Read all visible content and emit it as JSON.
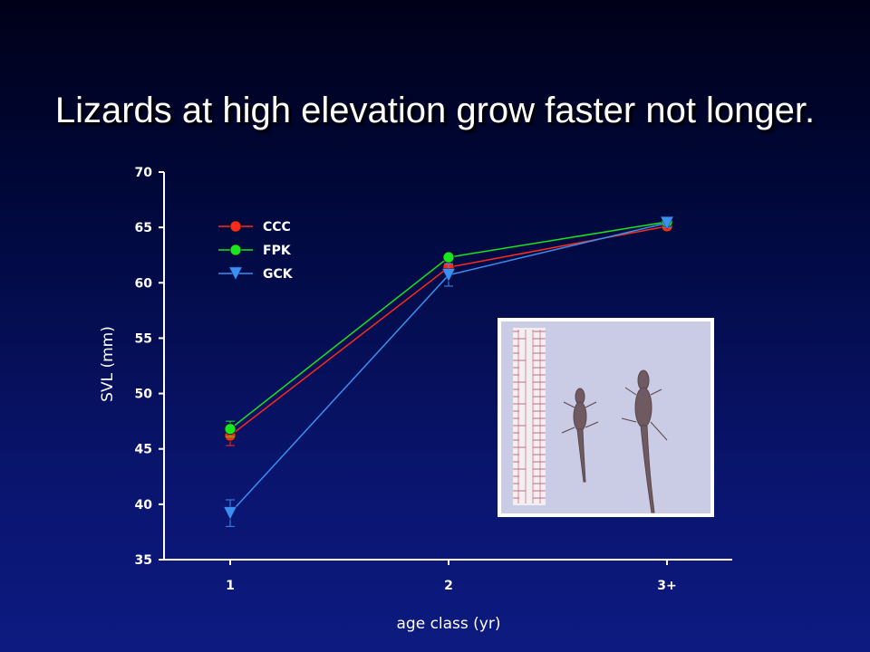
{
  "slide": {
    "title": "Lizards at high elevation grow faster not longer."
  },
  "chart_data": {
    "type": "line",
    "title": "",
    "xlabel": "age class (yr)",
    "ylabel": "SVL (mm)",
    "categories": [
      "1",
      "2",
      "3+"
    ],
    "ylim": [
      35,
      70
    ],
    "yticks": [
      35,
      40,
      45,
      50,
      55,
      60,
      65,
      70
    ],
    "legend_position": "top-left",
    "grid": false,
    "series": [
      {
        "name": "CCC",
        "color": "#ff2a1a",
        "marker": "circle",
        "values": [
          46.2,
          61.4,
          65.1
        ],
        "errors": [
          0.9,
          0.5,
          0.3
        ]
      },
      {
        "name": "FPK",
        "color": "#19e61e",
        "marker": "circle",
        "values": [
          46.8,
          62.3,
          65.5
        ],
        "errors": [
          0.7,
          0.3,
          0.3
        ]
      },
      {
        "name": "GCK",
        "color": "#3a8ff0",
        "marker": "triangle-down",
        "values": [
          39.2,
          60.7,
          65.4
        ],
        "errors": [
          1.2,
          1.0,
          0.4
        ]
      }
    ]
  },
  "inset_photo": {
    "description_icon": "lizard-photo-icon"
  }
}
